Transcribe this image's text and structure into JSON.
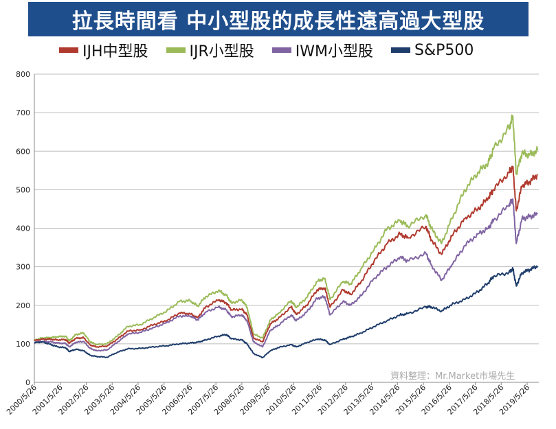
{
  "title": "拉長時間看 中小型股的成長性遠高過大型股",
  "colors": {
    "title_bg": "#1f4e8c",
    "title_text": "#ffffff",
    "grid": "#bdbdbd"
  },
  "source_note": "資料整理：Mr.Market市場先生",
  "chart_data": {
    "type": "line",
    "ylim": [
      0,
      800
    ],
    "yticks": [
      0,
      100,
      200,
      300,
      400,
      500,
      600,
      700,
      800
    ],
    "xlabels": [
      "2000/5/26",
      "2001/5/26",
      "2002/5/26",
      "2003/5/26",
      "2004/5/26",
      "2005/5/26",
      "2006/5/26",
      "2007/5/26",
      "2008/5/26",
      "2009/5/26",
      "2010/5/26",
      "2011/5/26",
      "2012/5/26",
      "2013/5/26",
      "2014/5/26",
      "2015/5/26",
      "2016/5/26",
      "2017/5/26",
      "2018/5/26",
      "2019/5/26"
    ],
    "grid": true,
    "legend_position": "top",
    "x": [
      2000.4,
      2000.7,
      2001.0,
      2001.3,
      2001.6,
      2001.75,
      2002.0,
      2002.3,
      2002.55,
      2002.8,
      2003.2,
      2003.6,
      2004.0,
      2004.5,
      2005.0,
      2005.5,
      2006.0,
      2006.4,
      2006.7,
      2007.0,
      2007.5,
      2007.8,
      2008.0,
      2008.4,
      2008.6,
      2008.85,
      2009.2,
      2009.5,
      2009.8,
      2010.3,
      2010.5,
      2010.9,
      2011.3,
      2011.6,
      2011.8,
      2012.3,
      2012.6,
      2013.0,
      2013.5,
      2014.0,
      2014.5,
      2014.8,
      2015.5,
      2015.7,
      2016.1,
      2016.5,
      2017.0,
      2017.5,
      2017.9,
      2018.1,
      2018.7,
      2018.85,
      2018.98,
      2019.2,
      2019.5,
      2019.8
    ],
    "series": [
      {
        "name": "IJH中型股",
        "color": "#b03a2e",
        "values": [
          108,
          112,
          112,
          110,
          111,
          102,
          114,
          116,
          97,
          92,
          94,
          112,
          133,
          136,
          150,
          160,
          180,
          178,
          168,
          195,
          214,
          206,
          188,
          190,
          175,
          115,
          105,
          152,
          165,
          196,
          176,
          200,
          240,
          245,
          195,
          240,
          228,
          262,
          315,
          360,
          385,
          375,
          405,
          370,
          332,
          380,
          425,
          450,
          478,
          500,
          545,
          560,
          445,
          510,
          520,
          540
        ]
      },
      {
        "name": "IJR小型股",
        "color": "#9bbb59",
        "values": [
          110,
          115,
          116,
          118,
          120,
          108,
          124,
          128,
          105,
          98,
          100,
          120,
          145,
          150,
          168,
          185,
          210,
          212,
          198,
          222,
          238,
          226,
          206,
          214,
          195,
          125,
          115,
          162,
          178,
          212,
          194,
          220,
          262,
          270,
          215,
          262,
          255,
          295,
          345,
          398,
          420,
          405,
          435,
          400,
          360,
          425,
          500,
          545,
          570,
          605,
          660,
          690,
          540,
          595,
          590,
          602
        ]
      },
      {
        "name": "IWM小型股",
        "color": "#8064a2",
        "values": [
          104,
          106,
          105,
          102,
          101,
          92,
          104,
          106,
          88,
          82,
          84,
          104,
          125,
          130,
          142,
          155,
          172,
          172,
          162,
          182,
          196,
          188,
          170,
          175,
          160,
          105,
          92,
          135,
          148,
          175,
          160,
          182,
          218,
          222,
          175,
          210,
          200,
          225,
          270,
          300,
          325,
          315,
          335,
          305,
          265,
          305,
          355,
          385,
          400,
          420,
          460,
          475,
          360,
          425,
          430,
          436
        ]
      },
      {
        "name": "S&P500",
        "color": "#1f3d6b",
        "values": [
          103,
          105,
          99,
          92,
          90,
          80,
          86,
          82,
          70,
          67,
          65,
          78,
          87,
          88,
          92,
          95,
          100,
          102,
          104,
          110,
          120,
          124,
          113,
          110,
          100,
          75,
          64,
          82,
          90,
          98,
          92,
          103,
          112,
          110,
          98,
          112,
          118,
          128,
          145,
          160,
          175,
          178,
          196,
          196,
          185,
          202,
          215,
          235,
          258,
          275,
          285,
          295,
          250,
          285,
          292,
          302
        ]
      }
    ]
  }
}
